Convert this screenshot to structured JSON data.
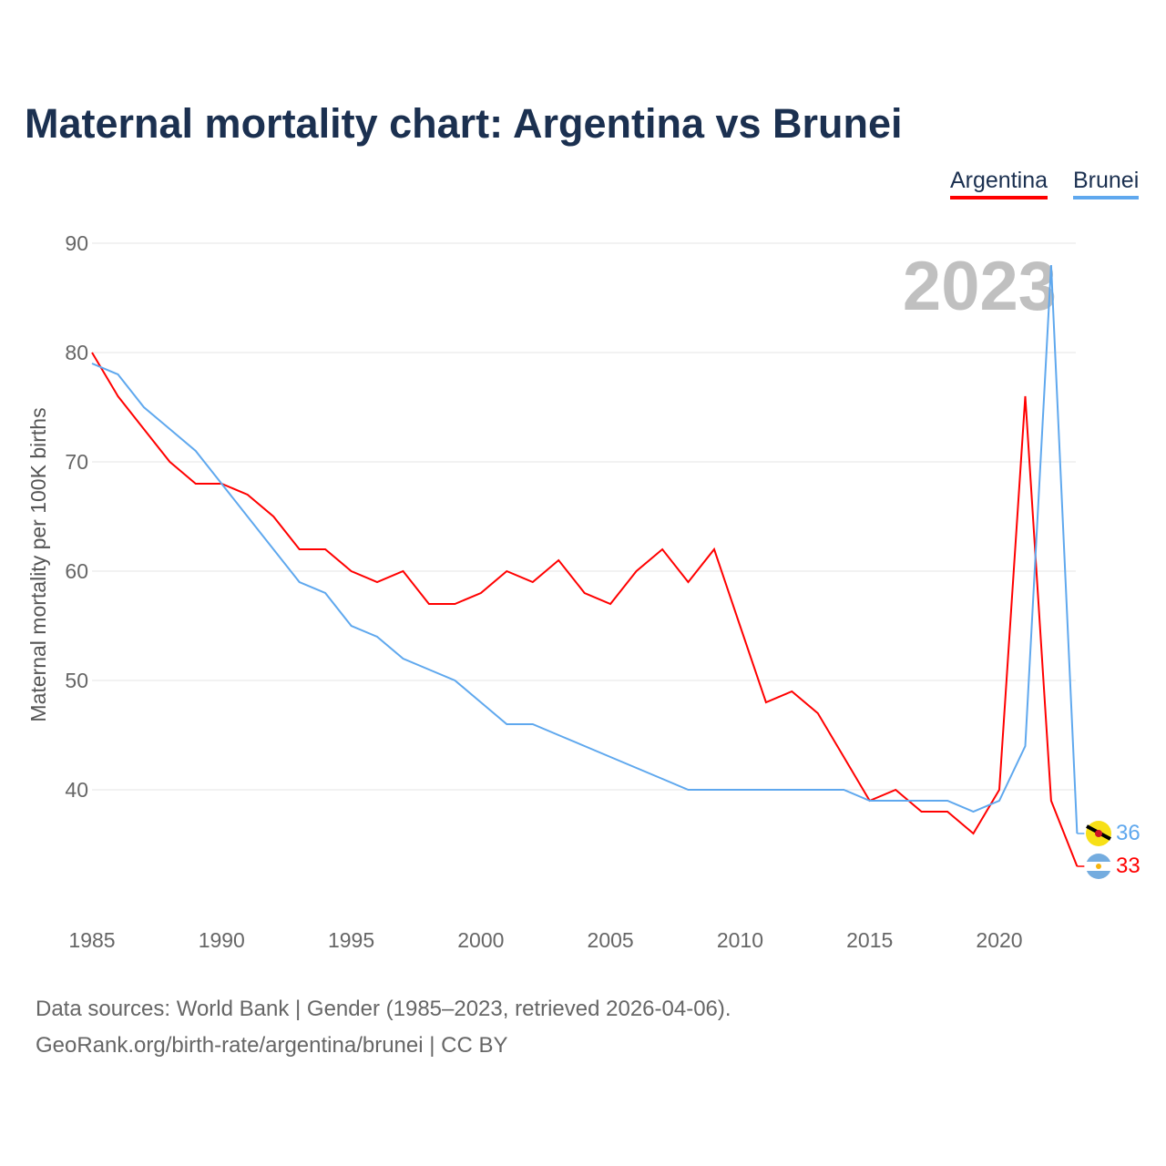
{
  "chart_data": {
    "type": "line",
    "title": "Maternal mortality chart: Argentina vs Brunei",
    "xlabel": "",
    "ylabel": "Maternal mortality per 100K births",
    "xlim": [
      1985,
      2023
    ],
    "ylim": [
      30,
      90
    ],
    "x_ticks": [
      "1985",
      "1990",
      "1995",
      "2000",
      "2005",
      "2010",
      "2015",
      "2020"
    ],
    "y_ticks": [
      "40",
      "50",
      "60",
      "70",
      "80",
      "90"
    ],
    "grid": true,
    "legend_position": "top-right",
    "year_watermark": "2023",
    "x": [
      1985,
      1986,
      1987,
      1988,
      1989,
      1990,
      1991,
      1992,
      1993,
      1994,
      1995,
      1996,
      1997,
      1998,
      1999,
      2000,
      2001,
      2002,
      2003,
      2004,
      2005,
      2006,
      2007,
      2008,
      2009,
      2010,
      2011,
      2012,
      2013,
      2014,
      2015,
      2016,
      2017,
      2018,
      2019,
      2020,
      2021,
      2022,
      2023
    ],
    "series": [
      {
        "name": "Argentina",
        "color": "#ff0000",
        "end_label": "33",
        "values": [
          80,
          76,
          73,
          70,
          68,
          68,
          67,
          65,
          62,
          62,
          60,
          59,
          60,
          57,
          57,
          58,
          60,
          59,
          61,
          58,
          57,
          60,
          62,
          59,
          62,
          55,
          48,
          49,
          47,
          43,
          39,
          40,
          38,
          38,
          36,
          40,
          76,
          39,
          33
        ]
      },
      {
        "name": "Brunei",
        "color": "#5fa8ee",
        "end_label": "36",
        "values": [
          79,
          78,
          75,
          73,
          71,
          68,
          65,
          62,
          59,
          58,
          55,
          54,
          52,
          51,
          50,
          48,
          46,
          46,
          45,
          44,
          43,
          42,
          41,
          40,
          40,
          40,
          40,
          40,
          40,
          40,
          39,
          39,
          39,
          39,
          38,
          39,
          44,
          88,
          36
        ]
      }
    ]
  },
  "footer": {
    "line1": "Data sources: World Bank | Gender (1985–2023, retrieved 2026-04-06).",
    "line2": "GeoRank.org/birth-rate/argentina/brunei | CC BY"
  }
}
